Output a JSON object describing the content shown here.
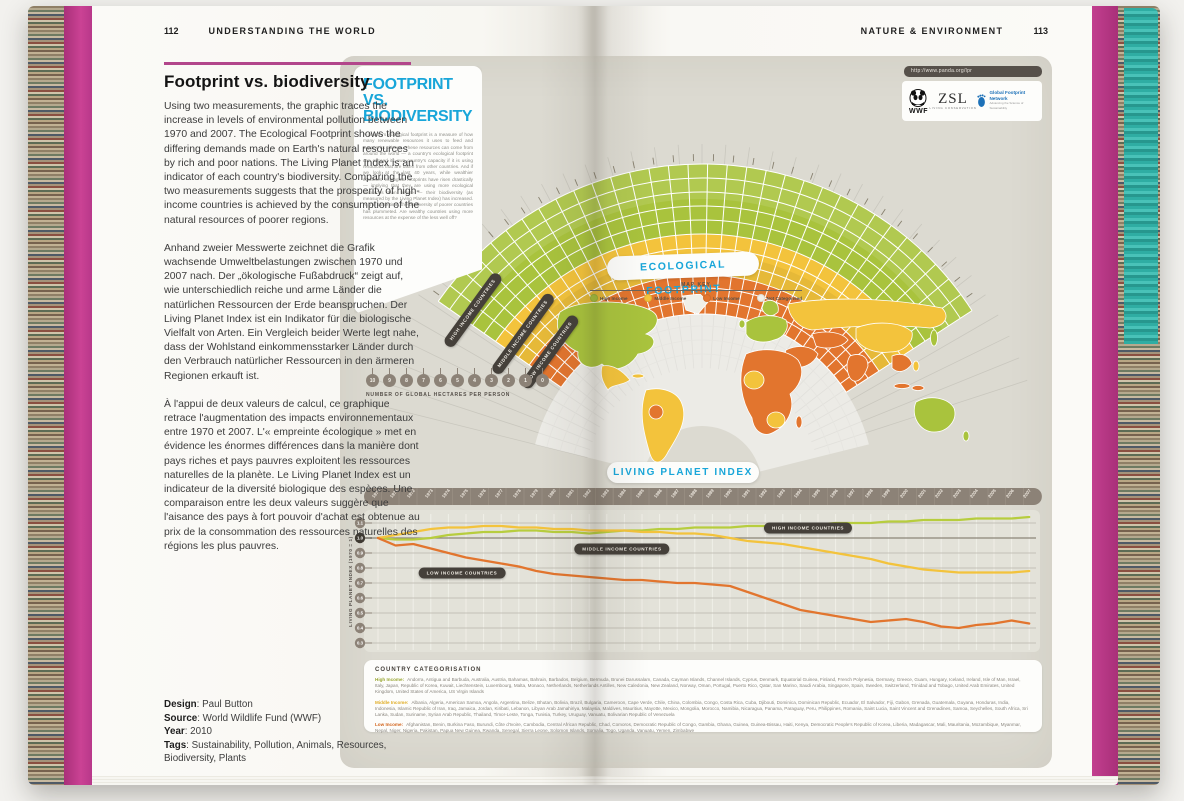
{
  "book": {
    "left_page": {
      "header": {
        "page_number": "112",
        "section": "UNDERSTANDING THE WORLD"
      },
      "title": "Footprint vs. biodiversity",
      "paragraphs": {
        "english": "Using two measurements, the graphic traces the increase in levels of environmental pollution between 1970 and 2007. The Ecological Footprint shows the differing demands made on Earth's natural resources by rich and poor nations. The Living Planet Index is an indicator of each country's biodiversity. Comparing the two measurements suggests that the prosperity of high-income countries is achieved by the consumption of the natural resources of poorer regions.",
        "german": "Anhand zweier Messwerte zeichnet die Grafik wachsende Umweltbelastungen zwischen 1970 und 2007 nach. Der „ökologische Fußabdruck“ zeigt auf, wie unterschiedlich reiche und arme Länder die natürlichen Ressourcen der Erde beanspruchen. Der Living Planet Index ist ein Indikator für die biologische Vielfalt von Arten. Ein Vergleich beider Werte legt nahe, dass der Wohlstand einkommensstarker Länder durch den Verbrauch natürlicher Ressourcen in den ärmeren Regionen erkauft ist.",
        "french": "À l'appui de deux valeurs de calcul, ce graphique retrace l'augmentation des impacts environnementaux entre 1970 et 2007. L'« empreinte écologique » met en évidence les énormes différences dans la manière dont pays riches et pays pauvres exploitent les ressources naturelles de la planète. Le Living Planet Index est un indicateur de la diversité biologique des espèces. Une comparaison entre les deux valeurs suggère que l'aisance des pays à fort pouvoir d'achat est obtenue au prix de la consommation des ressources naturelles des régions les plus pauvres."
      },
      "credits": [
        {
          "label": "Design",
          "value": "Paul Button"
        },
        {
          "label": "Source",
          "value": "World Wildlife Fund (WWF)"
        },
        {
          "label": "Year",
          "value": "2010"
        },
        {
          "label": "Tags",
          "value": "Sustainability, Pollution, Animals, Resources, Biodiversity, Plants"
        }
      ]
    },
    "right_page": {
      "header": {
        "section": "NATURE & ENVIRONMENT",
        "page_number": "113"
      }
    }
  },
  "poster": {
    "title_line1": "FOOTPRINT VS.",
    "title_line2": "BIODIVERSITY",
    "intro": "A country's ecological footprint is a measure of how many renewable resources it uses to feed and support its citizens. These resources can come from around the world — a country's ecological footprint can exceed its own country's capacity if it is using resources that are taken from other countries. And if we look at the last 40 years, while wealthier countries' ecological footprints have risen drastically — implying that they are using more ecological resources than before — their biodiversity (as measured by the Living Planet Index) has increased. At the same time, the biodiversity of poorer countries has plummeted. Are wealthy countries using more resources at the expense of the less well off?",
    "url": "http://www.panda.org/lpr",
    "logos": {
      "wwf": {
        "name": "WWF"
      },
      "zsl": {
        "name": "ZSL",
        "tagline": "LIVING CONSERVATION"
      },
      "gfn": {
        "name": "Global Footprint Network",
        "tagline": "Advancing the Science of Sustainability"
      }
    },
    "fan": {
      "title": "ECOLOGICAL FOOTPRINT",
      "map_key_label": "MAP KEY",
      "legend": [
        {
          "label": "High Income",
          "color": "#a9c33d"
        },
        {
          "label": "Middle Income",
          "color": "#f3c33c"
        },
        {
          "label": "Low Income",
          "color": "#e2752e"
        },
        {
          "label": "Not Categorised",
          "color": "#f0efe8"
        }
      ],
      "ribbons": [
        "HIGH INCOME COUNTRIES",
        "MIDDLE INCOME COUNTRIES",
        "LOW INCOME COUNTRIES"
      ],
      "scale_caption": "NUMBER OF GLOBAL HECTARES PER PERSON"
    },
    "categorisation": {
      "title": "COUNTRY CATEGORISATION",
      "groups": [
        {
          "label": "High Income:",
          "color": "#9aa833",
          "countries": "Andorra, Antigua and Barbuda, Australia, Austria, Bahamas, Bahrain, Barbados, Belgium, Bermuda, Brunei Darussalam, Canada, Cayman Islands, Channel Islands, Cyprus, Denmark, Equatorial Guinea, Finland, French Polynesia, Germany, Greece, Guam, Hungary, Iceland, Ireland, Isle of Man, Israel, Italy, Japan, Republic of Korea, Kuwait, Liechtenstein, Luxembourg, Malta, Monaco, Netherlands, Netherlands Antilles, New Caledonia, New Zealand, Norway, Oman, Portugal, Puerto Rico, Qatar, San Marino, Saudi Arabia, Singapore, Spain, Sweden, Switzerland, Trinidad and Tobago, United Arab Emirates, United Kingdom, United States of America, US Virgin Islands"
        },
        {
          "label": "Middle Income:",
          "color": "#e0ae2a",
          "countries": "Albania, Algeria, American Samoa, Angola, Argentina, Belize, Bhutan, Bolivia, Brazil, Bulgaria, Cameroon, Cape Verde, Chile, China, Colombia, Congo, Costa Rica, Cuba, Djibouti, Dominica, Dominican Republic, Ecuador, El Salvador, Fiji, Gabon, Grenada, Guatemala, Guyana, Honduras, India, Indonesia, Islamic Republic of Iran, Iraq, Jamaica, Jordan, Kiribati, Lebanon, Libyan Arab Jamahiriya, Malaysia, Maldives, Mauritius, Mayotte, Mexico, Mongolia, Morocco, Namibia, Nicaragua, Panama, Paraguay, Peru, Philippines, Romania, Saint Lucia, Saint Vincent and Grenadines, Samoa, Seychelles, South Africa, Sri Lanka, Sudan, Suriname, Syrian Arab Republic, Thailand, Timor-Leste, Tonga, Tunisia, Turkey, Uruguay, Vanuatu, Bolivarian Republic of Venezuela"
        },
        {
          "label": "Low Income:",
          "color": "#d2661f",
          "countries": "Afghanistan, Benin, Burkina Faso, Burundi, Côte d'Ivoire, Cambodia, Central African Republic, Chad, Comoros, Democratic Republic of Congo, Gambia, Ghana, Guinea, Guinea-Bissau, Haiti, Kenya, Democratic People's Republic of Korea, Liberia, Madagascar, Mali, Mauritania, Mozambique, Myanmar, Nepal, Niger, Nigeria, Pakistan, Papua New Guinea, Rwanda, Senegal, Sierra Leone, Solomon Islands, Somalia, Togo, Uganda, Vanuatu, Yemen, Zimbabwe"
        }
      ]
    }
  },
  "chart_data": [
    {
      "type": "line",
      "title": "LIVING PLANET INDEX",
      "ylabel": "LIVING PLANET INDEX (1970 = 1)",
      "x": [
        1970,
        1971,
        1972,
        1973,
        1974,
        1975,
        1976,
        1977,
        1978,
        1979,
        1980,
        1981,
        1982,
        1983,
        1984,
        1985,
        1986,
        1987,
        1988,
        1989,
        1990,
        1991,
        1992,
        1993,
        1994,
        1995,
        1996,
        1997,
        1998,
        1999,
        2000,
        2001,
        2002,
        2003,
        2004,
        2005,
        2006,
        2007
      ],
      "yticks": [
        1.1,
        1.0,
        0.9,
        0.8,
        0.7,
        0.6,
        0.5,
        0.4,
        0.3
      ],
      "ylim": [
        0.3,
        1.15
      ],
      "grid": true,
      "legend_position": "on-chart-labels",
      "series": [
        {
          "name": "HIGH INCOME COUNTRIES",
          "color": "#b7cd3e",
          "values": [
            1.0,
            0.99,
            0.99,
            1.0,
            1.02,
            1.03,
            1.04,
            1.04,
            1.05,
            1.05,
            1.04,
            1.04,
            1.03,
            1.04,
            1.05,
            1.05,
            1.06,
            1.06,
            1.07,
            1.07,
            1.07,
            1.08,
            1.08,
            1.08,
            1.09,
            1.09,
            1.1,
            1.1,
            1.1,
            1.11,
            1.11,
            1.12,
            1.12,
            1.12,
            1.13,
            1.13,
            1.13,
            1.14
          ]
        },
        {
          "name": "MIDDLE INCOME COUNTRIES",
          "color": "#f3c33c",
          "values": [
            1.0,
            1.02,
            1.04,
            1.06,
            1.07,
            1.07,
            1.08,
            1.08,
            1.07,
            1.07,
            1.06,
            1.06,
            1.05,
            1.05,
            1.05,
            1.04,
            1.04,
            1.03,
            1.03,
            1.02,
            1.0,
            0.98,
            0.97,
            0.96,
            0.94,
            0.92,
            0.9,
            0.88,
            0.86,
            0.83,
            0.81,
            0.79,
            0.78,
            0.77,
            0.77,
            0.77,
            0.77,
            0.78
          ]
        },
        {
          "name": "LOW INCOME COUNTRIES",
          "color": "#e2752e",
          "values": [
            1.0,
            0.95,
            0.96,
            0.93,
            0.9,
            0.87,
            0.85,
            0.83,
            0.81,
            0.78,
            0.76,
            0.75,
            0.74,
            0.73,
            0.72,
            0.72,
            0.71,
            0.7,
            0.7,
            0.69,
            0.68,
            0.64,
            0.6,
            0.56,
            0.52,
            0.5,
            0.48,
            0.46,
            0.44,
            0.45,
            0.46,
            0.44,
            0.41,
            0.4,
            0.42,
            0.43,
            0.45,
            0.43
          ]
        }
      ]
    },
    {
      "type": "radial-fan",
      "title": "ECOLOGICAL FOOTPRINT",
      "unit": "global hectares per person",
      "scale": [
        10,
        9,
        8,
        7,
        6,
        5,
        4,
        3,
        2,
        1,
        0
      ],
      "bands": [
        {
          "name": "High Income Countries",
          "color": "#a9c33d"
        },
        {
          "name": "Middle Income Countries",
          "color": "#f3c33c"
        },
        {
          "name": "Low Income Countries",
          "color": "#e2752e"
        }
      ]
    }
  ]
}
